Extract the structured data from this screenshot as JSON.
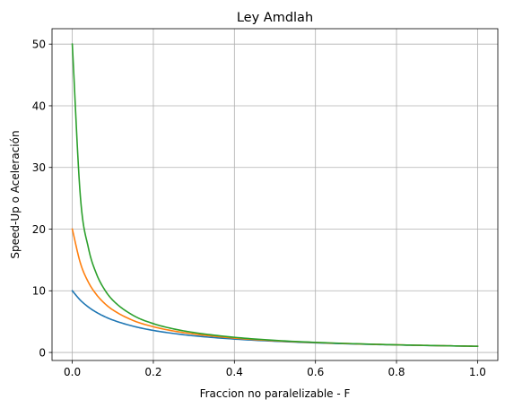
{
  "chart_data": {
    "type": "line",
    "title": "Ley Amdlah",
    "xlabel": "Fraccion no paralelizable - F",
    "ylabel": "Speed-Up o Aceleración",
    "xlim": [
      -0.05,
      1.05
    ],
    "ylim": [
      -1.3,
      52.5
    ],
    "xticks": [
      0.0,
      0.2,
      0.4,
      0.6,
      0.8,
      1.0
    ],
    "xtick_labels": [
      "0.0",
      "0.2",
      "0.4",
      "0.6",
      "0.8",
      "1.0"
    ],
    "yticks": [
      0,
      10,
      20,
      30,
      40,
      50
    ],
    "ytick_labels": [
      "0",
      "10",
      "20",
      "30",
      "40",
      "50"
    ],
    "grid": true,
    "legend": false,
    "x": [
      0.0,
      0.02,
      0.04,
      0.06,
      0.08,
      0.1,
      0.15,
      0.2,
      0.25,
      0.3,
      0.4,
      0.5,
      0.6,
      0.7,
      0.8,
      0.9,
      1.0
    ],
    "series": [
      {
        "color": "#1f77b4",
        "values": [
          10.0,
          8.47,
          7.35,
          6.49,
          5.81,
          5.26,
          4.26,
          3.57,
          3.08,
          2.7,
          2.17,
          1.82,
          1.56,
          1.37,
          1.22,
          1.1,
          1.0
        ]
      },
      {
        "color": "#ff7f0e",
        "values": [
          20.0,
          14.49,
          11.36,
          9.35,
          7.94,
          6.9,
          5.19,
          4.17,
          3.48,
          2.99,
          2.33,
          1.9,
          1.61,
          1.4,
          1.24,
          1.11,
          1.0
        ]
      },
      {
        "color": "#2ca02c",
        "values": [
          50.0,
          25.25,
          16.89,
          12.69,
          10.16,
          8.47,
          6.02,
          4.67,
          3.82,
          3.23,
          2.46,
          1.96,
          1.64,
          1.41,
          1.24,
          1.11,
          1.0
        ]
      }
    ]
  }
}
